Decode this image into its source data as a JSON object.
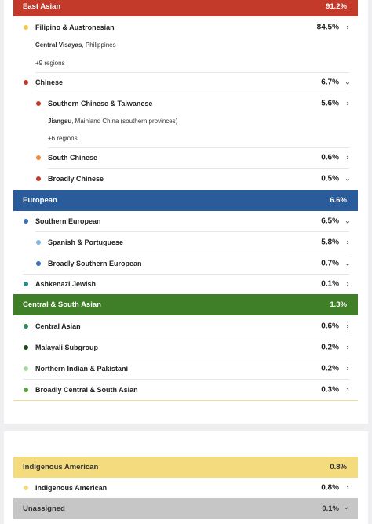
{
  "colors": {
    "east_asian": "#c33a2b",
    "european": "#2a5b9a",
    "central_south_asian": "#3f7f27",
    "indigenous": "#f4db7d",
    "unassigned": "#c6c6c6"
  },
  "east_asian": {
    "label": "East Asian",
    "pct": "91.2%",
    "filipino": {
      "label": "Filipino & Austronesian",
      "pct": "84.5%",
      "dot": "#f2c94c",
      "icon": "chevron-right",
      "region_name": "Central Visayas",
      "region_detail": ", Philippines",
      "more": "+9 regions"
    },
    "chinese": {
      "label": "Chinese",
      "pct": "6.7%",
      "dot": "#c33a2b",
      "icon": "chevron-down",
      "southern": {
        "label": "Southern Chinese & Taiwanese",
        "pct": "5.6%",
        "dot": "#c33a2b",
        "icon": "chevron-right",
        "region_name": "Jiangsu",
        "region_detail": ", Mainland China (southern provinces)",
        "more": "+6 regions"
      },
      "south": {
        "label": "South Chinese",
        "pct": "0.6%",
        "dot": "#ef8a3a",
        "icon": "chevron-right"
      },
      "broadly": {
        "label": "Broadly Chinese",
        "pct": "0.5%",
        "dot": "#c33a2b",
        "icon": "chevron-down"
      }
    }
  },
  "european": {
    "label": "European",
    "pct": "6.6%",
    "southern": {
      "label": "Southern European",
      "pct": "6.5%",
      "dot": "#3b6fb6",
      "icon": "chevron-down"
    },
    "spanish": {
      "label": "Spanish & Portuguese",
      "pct": "5.8%",
      "dot": "#7fb6e6",
      "icon": "chevron-right"
    },
    "broadly_southern": {
      "label": "Broadly Southern European",
      "pct": "0.7%",
      "dot": "#3b6fb6",
      "icon": "chevron-down"
    },
    "ashkenazi": {
      "label": "Ashkenazi Jewish",
      "pct": "0.1%",
      "dot": "#2a8a8a",
      "icon": "chevron-right"
    }
  },
  "central_south_asian": {
    "label": "Central & South Asian",
    "pct": "1.3%",
    "central": {
      "label": "Central Asian",
      "pct": "0.6%",
      "dot": "#2f8a5a",
      "icon": "chevron-right"
    },
    "malayali": {
      "label": "Malayali Subgroup",
      "pct": "0.2%",
      "dot": "#1f4a1a",
      "icon": "chevron-right"
    },
    "northern_indian": {
      "label": "Northern Indian & Pakistani",
      "pct": "0.2%",
      "dot": "#a6dba0",
      "icon": "chevron-right"
    },
    "broadly": {
      "label": "Broadly Central & South Asian",
      "pct": "0.3%",
      "dot": "#5aa53c",
      "icon": "chevron-right"
    }
  },
  "indigenous_american": {
    "label": "Indigenous American",
    "pct": "0.8%",
    "sub": {
      "label": "Indigenous American",
      "pct": "0.8%",
      "dot": "#f4db7d",
      "icon": "chevron-right"
    }
  },
  "unassigned": {
    "label": "Unassigned",
    "pct": "0.1%",
    "icon": "chevron-down"
  }
}
